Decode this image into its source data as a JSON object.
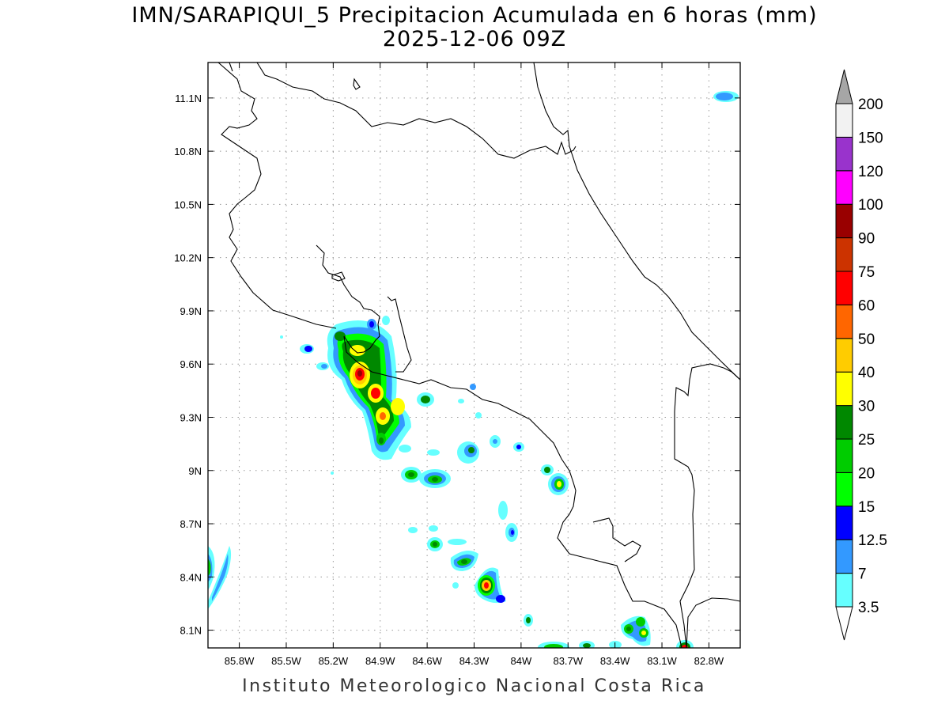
{
  "title_line1": "IMN/SARAPIQUI_5 Precipitacion Acumulada en 6 horas (mm)",
  "title_line2": "2025-12-06 09Z",
  "credit": "Instituto Meteorologico Nacional Costa Rica",
  "map": {
    "lon_range": [
      -86.0,
      -82.6
    ],
    "lat_range": [
      8.0,
      11.3
    ],
    "lon_ticks": [
      {
        "value": -85.8,
        "label": "85.8W"
      },
      {
        "value": -85.5,
        "label": "85.5W"
      },
      {
        "value": -85.2,
        "label": "85.2W"
      },
      {
        "value": -84.9,
        "label": "84.9W"
      },
      {
        "value": -84.6,
        "label": "84.6W"
      },
      {
        "value": -84.3,
        "label": "84.3W"
      },
      {
        "value": -84.0,
        "label": "84W"
      },
      {
        "value": -83.7,
        "label": "83.7W"
      },
      {
        "value": -83.4,
        "label": "83.4W"
      },
      {
        "value": -83.1,
        "label": "83.1W"
      },
      {
        "value": -82.8,
        "label": "82.8W"
      }
    ],
    "lat_ticks": [
      {
        "value": 11.1,
        "label": "11.1N"
      },
      {
        "value": 10.8,
        "label": "10.8N"
      },
      {
        "value": 10.5,
        "label": "10.5N"
      },
      {
        "value": 10.2,
        "label": "10.2N"
      },
      {
        "value": 9.9,
        "label": "9.9N"
      },
      {
        "value": 9.6,
        "label": "9.6N"
      },
      {
        "value": 9.3,
        "label": "9.3N"
      },
      {
        "value": 9.0,
        "label": "9N"
      },
      {
        "value": 8.7,
        "label": "8.7N"
      },
      {
        "value": 8.4,
        "label": "8.4N"
      },
      {
        "value": 8.1,
        "label": "8.1N"
      }
    ],
    "grid": true
  },
  "colorbar": {
    "levels": [
      "3.5",
      "7",
      "12.5",
      "15",
      "20",
      "25",
      "30",
      "40",
      "50",
      "60",
      "75",
      "90",
      "100",
      "120",
      "150",
      "200"
    ],
    "colors": [
      "#66ffff",
      "#3399ff",
      "#0000ff",
      "#00ff00",
      "#00cc00",
      "#008800",
      "#ffff00",
      "#ffcc00",
      "#ff6600",
      "#ff0000",
      "#cc3300",
      "#990000",
      "#ff00ff",
      "#9933cc",
      "#f2f2f2",
      "#a6a6a6"
    ],
    "min_color": "#ffffff",
    "max_color": "#a6a6a6"
  },
  "precip_cells": [
    {
      "lon": -84.98,
      "lat": 9.55,
      "max_mm": 75
    },
    {
      "lon": -84.88,
      "lat": 9.43,
      "max_mm": 60
    },
    {
      "lon": -84.86,
      "lat": 9.3,
      "max_mm": 40
    },
    {
      "lon": -84.76,
      "lat": 9.37,
      "max_mm": 40
    },
    {
      "lon": -84.95,
      "lat": 9.68,
      "max_mm": 40
    },
    {
      "lon": -84.83,
      "lat": 9.66,
      "max_mm": 25
    },
    {
      "lon": -85.08,
      "lat": 9.75,
      "max_mm": 25
    },
    {
      "lon": -84.86,
      "lat": 9.18,
      "max_mm": 25
    },
    {
      "lon": -84.88,
      "lat": 9.82,
      "max_mm": 12.5
    },
    {
      "lon": -85.25,
      "lat": 9.67,
      "max_mm": 12.5
    },
    {
      "lon": -84.58,
      "lat": 9.4,
      "max_mm": 25
    },
    {
      "lon": -84.62,
      "lat": 8.98,
      "max_mm": 25
    },
    {
      "lon": -84.48,
      "lat": 8.95,
      "max_mm": 25
    },
    {
      "lon": -84.28,
      "lat": 9.12,
      "max_mm": 25
    },
    {
      "lon": -84.05,
      "lat": 8.65,
      "max_mm": 12.5
    },
    {
      "lon": -84.3,
      "lat": 8.48,
      "max_mm": 30
    },
    {
      "lon": -84.17,
      "lat": 8.36,
      "max_mm": 75
    },
    {
      "lon": -84.47,
      "lat": 8.58,
      "max_mm": 25
    },
    {
      "lon": -83.67,
      "lat": 8.89,
      "max_mm": 30
    },
    {
      "lon": -83.75,
      "lat": 9.0,
      "max_mm": 20
    },
    {
      "lon": -83.06,
      "lat": 8.08,
      "max_mm": 30
    },
    {
      "lon": -82.85,
      "lat": 8.0,
      "max_mm": 75
    },
    {
      "lon": -85.98,
      "lat": 8.45,
      "max_mm": 25
    }
  ]
}
